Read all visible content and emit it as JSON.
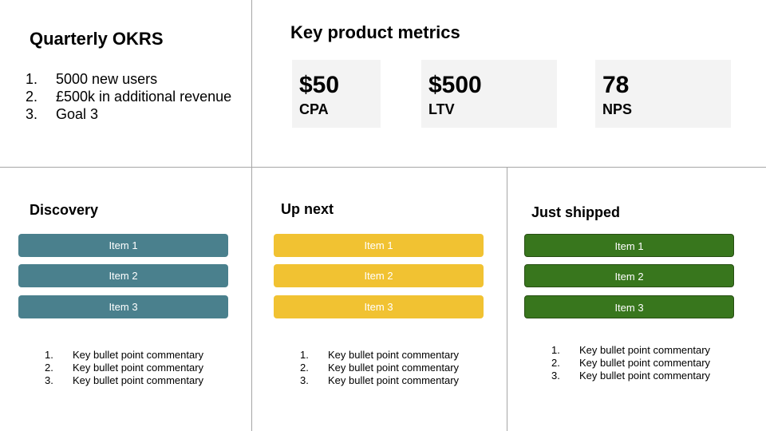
{
  "okrs": {
    "title": "Quarterly OKRS",
    "items": [
      {
        "num": "1.",
        "text": "5000 new users"
      },
      {
        "num": "2.",
        "text": "£500k in additional revenue"
      },
      {
        "num": "3.",
        "text": "Goal 3"
      }
    ]
  },
  "metrics": {
    "title": "Key product metrics",
    "cards": [
      {
        "value": "$50",
        "label": "CPA"
      },
      {
        "value": "$500",
        "label": "LTV"
      },
      {
        "value": "78",
        "label": "NPS"
      }
    ]
  },
  "columns": [
    {
      "title": "Discovery",
      "color": "#4a808d",
      "items": [
        "Item 1",
        "Item 2",
        "Item 3"
      ],
      "bullets": [
        {
          "num": "1.",
          "text": "Key bullet point commentary"
        },
        {
          "num": "2.",
          "text": "Key bullet point commentary"
        },
        {
          "num": "3.",
          "text": "Key bullet point commentary"
        }
      ]
    },
    {
      "title": "Up next",
      "color": "#f1c232",
      "items": [
        "Item 1",
        "Item 2",
        "Item 3"
      ],
      "bullets": [
        {
          "num": "1.",
          "text": "Key bullet point commentary"
        },
        {
          "num": "2.",
          "text": "Key bullet point commentary"
        },
        {
          "num": "3.",
          "text": "Key bullet point commentary"
        }
      ]
    },
    {
      "title": "Just shipped",
      "color": "#38761d",
      "items": [
        "Item 1",
        "Item 2",
        "Item 3"
      ],
      "bullets": [
        {
          "num": "1.",
          "text": "Key bullet point commentary"
        },
        {
          "num": "2.",
          "text": "Key bullet point commentary"
        },
        {
          "num": "3.",
          "text": "Key bullet point commentary"
        }
      ]
    }
  ]
}
